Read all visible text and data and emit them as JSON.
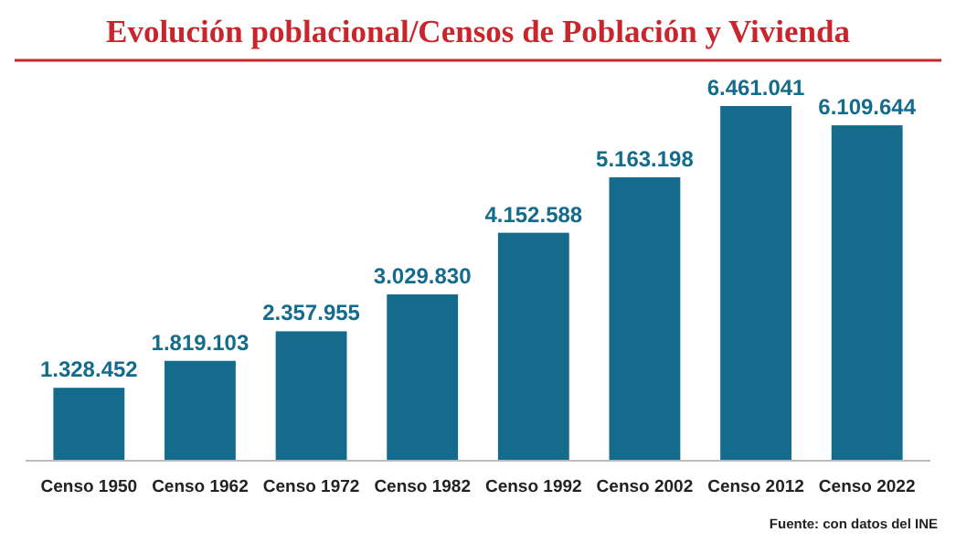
{
  "chart_data": {
    "type": "bar",
    "title": "Evolución poblacional/Censos de Población y Vivienda",
    "categories": [
      "Censo 1950",
      "Censo 1962",
      "Censo 1972",
      "Censo 1982",
      "Censo 1992",
      "Censo 2002",
      "Censo 2012",
      "Censo 2022"
    ],
    "values": [
      1328452,
      1819103,
      2357955,
      3029830,
      4152588,
      5163198,
      6461041,
      6109644
    ],
    "value_labels": [
      "1.328.452",
      "1.819.103",
      "2.357.955",
      "3.029.830",
      "4.152.588",
      "5.163.198",
      "6.461.041",
      "6.109.644"
    ],
    "color": "#146b8c",
    "annotations": [
      "Fuente: con datos del INE"
    ]
  }
}
